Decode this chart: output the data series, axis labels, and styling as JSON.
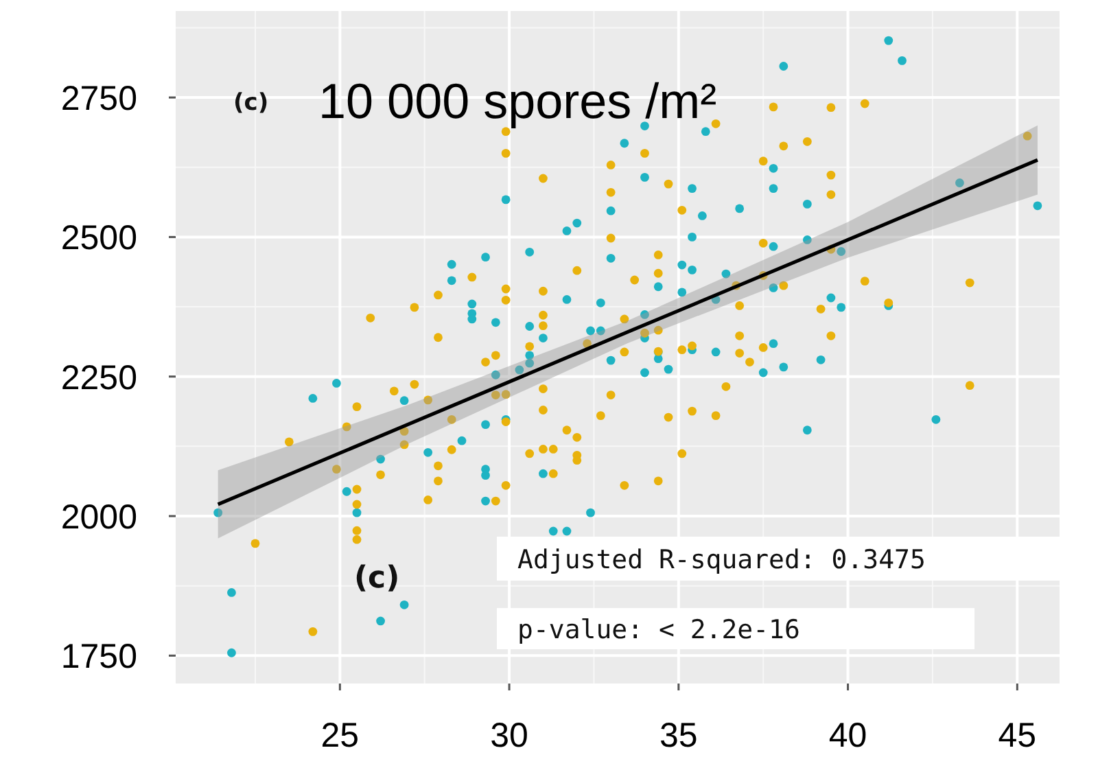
{
  "chart_data": {
    "type": "scatter",
    "title": "10 000 spores /m²",
    "annotations": [
      "(c)",
      "(c)",
      "Adjusted R-squared: 0.3475",
      "p-value: < 2.2e-16"
    ],
    "xlim": [
      20.15,
      46.25
    ],
    "ylim": [
      1700,
      2905
    ],
    "xticks": [
      25,
      30,
      35,
      40,
      45
    ],
    "yticks": [
      1750,
      2000,
      2250,
      2500,
      2750
    ],
    "grid": true,
    "marker": "circle",
    "series": [
      {
        "color": "#1fb3c3",
        "x": [
          41.2,
          41.6,
          38.1,
          34.0,
          33.4,
          35.8,
          34.0,
          33.0,
          33.0,
          31.7,
          32.0,
          30.6,
          29.3,
          28.3,
          28.3,
          28.9,
          28.9,
          28.9,
          29.6,
          30.6,
          31.0,
          31.7,
          32.7,
          32.4,
          32.7,
          30.6,
          29.9,
          35.4,
          35.7,
          36.8,
          37.8,
          37.8,
          38.8,
          38.8,
          35.4,
          37.8,
          39.8,
          43.3,
          45.6,
          35.1,
          35.4,
          34.4,
          36.4,
          35.1,
          37.8,
          34.0,
          34.0,
          36.1,
          39.5,
          39.8,
          41.2,
          37.8,
          36.1,
          34.4,
          21.4,
          21.8,
          21.8,
          24.2,
          24.9,
          25.2,
          25.5,
          26.2,
          26.2,
          26.9,
          26.9,
          27.6,
          28.6,
          29.3,
          29.3,
          29.3,
          29.3,
          29.6,
          30.3,
          29.9,
          30.6,
          31.0,
          31.3,
          31.7,
          32.4,
          33.0,
          34.0,
          34.4,
          34.7,
          35.4,
          37.5,
          38.1,
          39.2,
          38.8,
          42.6
        ],
        "values": [
          2852,
          2816,
          2806,
          2699,
          2668,
          2689,
          2607,
          2547,
          2462,
          2511,
          2525,
          2473,
          2464,
          2451,
          2422,
          2380,
          2363,
          2353,
          2347,
          2340,
          2319,
          2388,
          2382,
          2332,
          2332,
          2288,
          2567,
          2587,
          2538,
          2551,
          2623,
          2587,
          2559,
          2495,
          2500,
          2483,
          2474,
          2597,
          2556,
          2450,
          2441,
          2411,
          2434,
          2401,
          2409,
          2361,
          2319,
          2388,
          2391,
          2374,
          2377,
          2309,
          2294,
          2294,
          2006,
          1863,
          1755,
          2211,
          2238,
          2044,
          2006,
          2102,
          1812,
          2207,
          1841,
          2114,
          2135,
          2164,
          2084,
          2073,
          2027,
          2253,
          2262,
          2173,
          2274,
          2076,
          1973,
          1973,
          2006,
          2279,
          2257,
          2282,
          2263,
          2298,
          2257,
          2267,
          2280,
          2154,
          2173
        ]
      },
      {
        "color": "#e9b20c",
        "x": [
          29.9,
          29.9,
          31.0,
          33.0,
          33.0,
          33.0,
          32.0,
          28.9,
          27.9,
          27.2,
          25.9,
          27.9,
          29.9,
          29.9,
          31.0,
          31.0,
          31.0,
          30.6,
          29.6,
          33.4,
          32.3,
          37.8,
          39.5,
          40.5,
          36.1,
          34.0,
          38.1,
          38.8,
          37.5,
          39.5,
          39.5,
          34.7,
          35.1,
          37.5,
          34.4,
          34.4,
          33.7,
          37.5,
          39.5,
          40.5,
          43.6,
          45.3,
          36.7,
          38.1,
          41.2,
          36.8,
          39.2,
          34.4,
          34.0,
          36.8,
          39.5,
          35.1,
          35.4,
          37.5,
          36.8,
          33.4,
          22.5,
          23.5,
          24.2,
          24.9,
          25.2,
          25.5,
          25.5,
          25.5,
          25.5,
          25.5,
          26.2,
          26.6,
          26.9,
          26.9,
          27.2,
          27.6,
          27.6,
          27.9,
          27.9,
          28.3,
          28.3,
          29.3,
          29.6,
          29.9,
          29.9,
          29.9,
          29.6,
          30.6,
          31.0,
          31.0,
          31.0,
          31.3,
          31.3,
          31.7,
          32.0,
          32.0,
          32.0,
          32.7,
          33.0,
          33.4,
          34.7,
          35.4,
          36.1,
          36.4,
          35.1,
          34.4,
          34.4,
          37.1,
          43.6
        ],
        "values": [
          2689,
          2650,
          2605,
          2629,
          2580,
          2498,
          2440,
          2428,
          2396,
          2374,
          2355,
          2320,
          2407,
          2387,
          2403,
          2360,
          2341,
          2304,
          2288,
          2353,
          2309,
          2733,
          2732,
          2739,
          2703,
          2650,
          2663,
          2671,
          2636,
          2611,
          2576,
          2595,
          2548,
          2489,
          2468,
          2435,
          2423,
          2431,
          2478,
          2421,
          2418,
          2681,
          2413,
          2413,
          2382,
          2377,
          2371,
          2333,
          2328,
          2323,
          2323,
          2298,
          2305,
          2302,
          2292,
          2294,
          1951,
          2133,
          1793,
          2084,
          2160,
          2196,
          2048,
          2021,
          1974,
          1958,
          2074,
          2224,
          2152,
          2128,
          2236,
          2208,
          2029,
          2090,
          2063,
          2173,
          2119,
          2276,
          2217,
          2218,
          2169,
          2055,
          2027,
          2112,
          2228,
          2190,
          2120,
          2120,
          2076,
          2154,
          2141,
          2109,
          2100,
          2180,
          2217,
          2055,
          2177,
          2188,
          2180,
          2232,
          2112,
          2063,
          2295,
          2276,
          2234
        ]
      },
      {
        "type": "line",
        "marker": "none",
        "color": "#000000",
        "x": [
          21.4,
          27,
          33.5,
          40,
          45.6
        ],
        "values": [
          2021,
          2164,
          2330,
          2495,
          2638
        ],
        "lower": [
          1960,
          2129,
          2310,
          2463,
          2576
        ],
        "upper": [
          2082,
          2199,
          2350,
          2527,
          2700
        ]
      }
    ]
  }
}
